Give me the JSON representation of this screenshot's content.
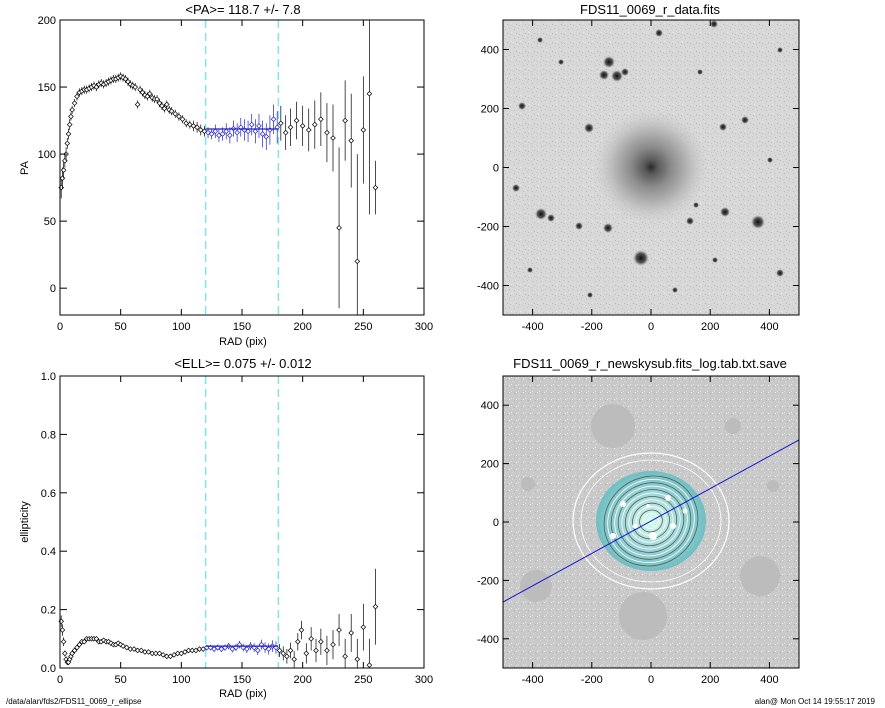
{
  "footer": {
    "path": "/data/alan/fds2/FDS11_0069_r_ellipse",
    "stamp": "alan@  Mon Oct 14 19:55:17 2019"
  },
  "colors": {
    "profile": "#1f1fc8",
    "range_line": "#7fe6e6",
    "points": "#000000",
    "pa_line": "#1414d2"
  },
  "chart_data": [
    {
      "type": "scatter",
      "title": "<PA>= 118.7 +/-   7.8",
      "xlabel": "RAD (pix)",
      "ylabel": "PA",
      "xlim": [
        0,
        300
      ],
      "ylim": [
        -20,
        200
      ],
      "xticks": [
        "0",
        "50",
        "100",
        "150",
        "200",
        "250",
        "300"
      ],
      "yticks": [
        "0",
        "50",
        "100",
        "150",
        "200"
      ],
      "grid": false,
      "vlines": [
        120,
        180
      ],
      "mean_line": {
        "x": [
          120,
          180
        ],
        "y": 118.7
      },
      "points": [
        [
          1,
          75,
          8
        ],
        [
          2,
          82,
          8
        ],
        [
          3,
          88,
          6
        ],
        [
          4,
          95,
          5
        ],
        [
          5,
          100,
          5
        ],
        [
          6,
          108,
          4
        ],
        [
          7,
          115,
          4
        ],
        [
          8,
          122,
          4
        ],
        [
          9,
          128,
          3
        ],
        [
          10,
          133,
          3
        ],
        [
          12,
          138,
          3
        ],
        [
          14,
          143,
          3
        ],
        [
          16,
          146,
          3
        ],
        [
          18,
          147,
          3
        ],
        [
          20,
          148,
          3
        ],
        [
          22,
          148,
          3
        ],
        [
          24,
          149,
          3
        ],
        [
          26,
          150,
          3
        ],
        [
          28,
          151,
          3
        ],
        [
          30,
          150,
          3
        ],
        [
          32,
          152,
          3
        ],
        [
          34,
          153,
          3
        ],
        [
          36,
          152,
          3
        ],
        [
          38,
          153,
          3
        ],
        [
          40,
          154,
          3
        ],
        [
          42,
          155,
          3
        ],
        [
          44,
          156,
          3
        ],
        [
          46,
          156,
          3
        ],
        [
          48,
          157,
          3
        ],
        [
          50,
          158,
          3
        ],
        [
          52,
          157,
          3
        ],
        [
          54,
          156,
          3
        ],
        [
          56,
          154,
          3
        ],
        [
          58,
          152,
          3
        ],
        [
          60,
          151,
          3
        ],
        [
          62,
          150,
          3
        ],
        [
          64,
          137,
          3
        ],
        [
          66,
          148,
          3
        ],
        [
          68,
          146,
          3
        ],
        [
          70,
          144,
          3
        ],
        [
          72,
          143,
          3
        ],
        [
          74,
          145,
          3
        ],
        [
          76,
          142,
          3
        ],
        [
          78,
          141,
          3
        ],
        [
          80,
          141,
          3
        ],
        [
          82,
          138,
          3
        ],
        [
          84,
          136,
          3
        ],
        [
          86,
          134,
          3
        ],
        [
          88,
          137,
          3
        ],
        [
          90,
          133,
          3
        ],
        [
          92,
          132,
          3
        ],
        [
          95,
          130,
          3
        ],
        [
          98,
          128,
          3
        ],
        [
          101,
          126,
          3
        ],
        [
          104,
          123,
          3
        ],
        [
          107,
          122,
          3
        ],
        [
          110,
          121,
          4
        ],
        [
          113,
          120,
          4
        ],
        [
          116,
          118,
          4
        ],
        [
          119,
          117,
          4
        ],
        [
          122,
          116,
          4
        ],
        [
          125,
          115,
          4
        ],
        [
          128,
          117,
          5
        ],
        [
          131,
          114,
          5
        ],
        [
          134,
          115,
          5
        ],
        [
          137,
          117,
          6
        ],
        [
          140,
          114,
          6
        ],
        [
          143,
          119,
          6
        ],
        [
          146,
          116,
          7
        ],
        [
          149,
          120,
          7
        ],
        [
          152,
          118,
          8
        ],
        [
          155,
          117,
          8
        ],
        [
          158,
          122,
          8
        ],
        [
          161,
          117,
          9
        ],
        [
          164,
          121,
          9
        ],
        [
          167,
          115,
          10
        ],
        [
          170,
          113,
          10
        ],
        [
          173,
          118,
          11
        ],
        [
          176,
          126,
          11
        ],
        [
          179,
          120,
          12
        ],
        [
          182,
          123,
          13
        ],
        [
          186,
          116,
          13
        ],
        [
          190,
          120,
          14
        ],
        [
          195,
          125,
          14
        ],
        [
          200,
          121,
          15
        ],
        [
          205,
          118,
          16
        ],
        [
          210,
          122,
          18
        ],
        [
          215,
          126,
          20
        ],
        [
          220,
          116,
          22
        ],
        [
          225,
          112,
          25
        ],
        [
          230,
          45,
          60
        ],
        [
          235,
          125,
          30
        ],
        [
          240,
          110,
          35
        ],
        [
          245,
          20,
          80
        ],
        [
          250,
          118,
          40
        ],
        [
          255,
          145,
          90
        ],
        [
          260,
          75,
          20
        ]
      ]
    },
    {
      "type": "image",
      "title": "FDS11_0069_r_data.fits",
      "xlim": [
        -500,
        500
      ],
      "ylim": [
        -500,
        500
      ],
      "xticks": [
        "-400",
        "-200",
        "0",
        "200",
        "400"
      ],
      "yticks": [
        "-400",
        "-200",
        "0",
        "200",
        "400"
      ]
    },
    {
      "type": "scatter",
      "title": "<ELL>= 0.075 +/-  0.012",
      "xlabel": "RAD (pix)",
      "ylabel": "ellipticity",
      "xlim": [
        0,
        300
      ],
      "ylim": [
        0,
        1
      ],
      "xticks": [
        "0",
        "50",
        "100",
        "150",
        "200",
        "250",
        "300"
      ],
      "yticks": [
        "0.0",
        "0.2",
        "0.4",
        "0.6",
        "0.8",
        "1.0"
      ],
      "grid": false,
      "vlines": [
        120,
        180
      ],
      "mean_line": {
        "x": [
          120,
          180
        ],
        "y": 0.075
      },
      "points": [
        [
          1,
          0.16,
          0.02
        ],
        [
          2,
          0.13,
          0.02
        ],
        [
          3,
          0.09,
          0.015
        ],
        [
          4,
          0.05,
          0.01
        ],
        [
          5,
          0.03,
          0.01
        ],
        [
          6,
          0.02,
          0.01
        ],
        [
          7,
          0.02,
          0.01
        ],
        [
          8,
          0.03,
          0.008
        ],
        [
          9,
          0.04,
          0.008
        ],
        [
          10,
          0.05,
          0.008
        ],
        [
          12,
          0.06,
          0.006
        ],
        [
          14,
          0.07,
          0.006
        ],
        [
          16,
          0.08,
          0.006
        ],
        [
          18,
          0.09,
          0.006
        ],
        [
          20,
          0.09,
          0.006
        ],
        [
          22,
          0.1,
          0.006
        ],
        [
          24,
          0.1,
          0.006
        ],
        [
          26,
          0.1,
          0.006
        ],
        [
          28,
          0.1,
          0.006
        ],
        [
          30,
          0.1,
          0.006
        ],
        [
          32,
          0.09,
          0.006
        ],
        [
          34,
          0.09,
          0.006
        ],
        [
          36,
          0.095,
          0.006
        ],
        [
          38,
          0.09,
          0.006
        ],
        [
          40,
          0.09,
          0.006
        ],
        [
          42,
          0.085,
          0.006
        ],
        [
          44,
          0.08,
          0.006
        ],
        [
          46,
          0.08,
          0.006
        ],
        [
          48,
          0.085,
          0.006
        ],
        [
          50,
          0.08,
          0.006
        ],
        [
          52,
          0.075,
          0.006
        ],
        [
          55,
          0.07,
          0.006
        ],
        [
          58,
          0.065,
          0.006
        ],
        [
          61,
          0.065,
          0.006
        ],
        [
          64,
          0.06,
          0.006
        ],
        [
          67,
          0.06,
          0.006
        ],
        [
          70,
          0.055,
          0.006
        ],
        [
          73,
          0.055,
          0.006
        ],
        [
          76,
          0.05,
          0.006
        ],
        [
          79,
          0.05,
          0.006
        ],
        [
          82,
          0.05,
          0.006
        ],
        [
          85,
          0.045,
          0.006
        ],
        [
          88,
          0.04,
          0.006
        ],
        [
          91,
          0.04,
          0.007
        ],
        [
          94,
          0.045,
          0.007
        ],
        [
          97,
          0.05,
          0.007
        ],
        [
          100,
          0.05,
          0.007
        ],
        [
          103,
          0.055,
          0.007
        ],
        [
          106,
          0.06,
          0.008
        ],
        [
          109,
          0.06,
          0.008
        ],
        [
          112,
          0.06,
          0.008
        ],
        [
          115,
          0.065,
          0.008
        ],
        [
          118,
          0.065,
          0.008
        ],
        [
          121,
          0.07,
          0.009
        ],
        [
          124,
          0.07,
          0.009
        ],
        [
          127,
          0.065,
          0.01
        ],
        [
          130,
          0.07,
          0.01
        ],
        [
          133,
          0.065,
          0.01
        ],
        [
          136,
          0.07,
          0.011
        ],
        [
          139,
          0.075,
          0.011
        ],
        [
          142,
          0.065,
          0.012
        ],
        [
          145,
          0.07,
          0.012
        ],
        [
          148,
          0.08,
          0.013
        ],
        [
          151,
          0.07,
          0.013
        ],
        [
          154,
          0.065,
          0.014
        ],
        [
          157,
          0.075,
          0.014
        ],
        [
          160,
          0.07,
          0.015
        ],
        [
          163,
          0.06,
          0.016
        ],
        [
          166,
          0.08,
          0.017
        ],
        [
          169,
          0.07,
          0.018
        ],
        [
          172,
          0.065,
          0.019
        ],
        [
          175,
          0.075,
          0.02
        ],
        [
          178,
          0.07,
          0.021
        ],
        [
          181,
          0.06,
          0.022
        ],
        [
          184,
          0.05,
          0.024
        ],
        [
          187,
          0.04,
          0.025
        ],
        [
          190,
          0.06,
          0.027
        ],
        [
          193,
          0.03,
          0.028
        ],
        [
          196,
          0.09,
          0.03
        ],
        [
          199,
          0.13,
          0.032
        ],
        [
          203,
          0.05,
          0.035
        ],
        [
          207,
          0.1,
          0.04
        ],
        [
          211,
          0.06,
          0.04
        ],
        [
          215,
          0.09,
          0.045
        ],
        [
          220,
          0.06,
          0.05
        ],
        [
          225,
          0.08,
          0.05
        ],
        [
          230,
          0.13,
          0.055
        ],
        [
          235,
          0.04,
          0.06
        ],
        [
          240,
          0.12,
          0.065
        ],
        [
          245,
          0.03,
          0.07
        ],
        [
          250,
          0.14,
          0.08
        ],
        [
          255,
          0.01,
          0.09
        ],
        [
          260,
          0.21,
          0.13
        ]
      ]
    },
    {
      "type": "image",
      "title": "FDS11_0069_r_newskysub.fits_log.tab.txt.save",
      "xlim": [
        -500,
        500
      ],
      "ylim": [
        -500,
        500
      ],
      "xticks": [
        "-400",
        "-200",
        "0",
        "200",
        "400"
      ],
      "yticks": [
        "-400",
        "-200",
        "0",
        "200",
        "400"
      ],
      "pa_line_deg": 118.7
    }
  ]
}
